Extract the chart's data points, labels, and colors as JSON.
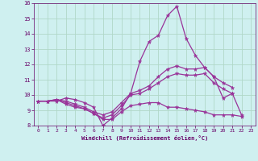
{
  "xlabel": "Windchill (Refroidissement éolien,°C)",
  "xlim": [
    -0.5,
    23.5
  ],
  "ylim": [
    8,
    16
  ],
  "xticks": [
    0,
    1,
    2,
    3,
    4,
    5,
    6,
    7,
    8,
    9,
    10,
    11,
    12,
    13,
    14,
    15,
    16,
    17,
    18,
    19,
    20,
    21,
    22,
    23
  ],
  "yticks": [
    8,
    9,
    10,
    11,
    12,
    13,
    14,
    15,
    16
  ],
  "background_color": "#cff0f0",
  "grid_color": "#b0d8c8",
  "line_color": "#993399",
  "hours": [
    0,
    1,
    2,
    3,
    4,
    5,
    6,
    7,
    8,
    9,
    10,
    11,
    12,
    13,
    14,
    15,
    16,
    17,
    18,
    19,
    20,
    21,
    22,
    23
  ],
  "line1": [
    9.6,
    9.6,
    9.6,
    9.8,
    9.7,
    9.5,
    9.2,
    8.0,
    8.5,
    9.1,
    10.1,
    12.2,
    13.5,
    13.9,
    15.2,
    15.8,
    13.7,
    12.6,
    11.8,
    11.2,
    9.8,
    10.1,
    8.7,
    null
  ],
  "line2": [
    9.6,
    9.6,
    9.7,
    9.6,
    9.4,
    9.2,
    8.9,
    8.7,
    8.9,
    9.5,
    10.1,
    10.3,
    10.6,
    11.2,
    11.7,
    11.9,
    11.7,
    11.7,
    11.8,
    11.2,
    10.8,
    10.5,
    null,
    null
  ],
  "line3": [
    9.6,
    9.6,
    9.7,
    9.5,
    9.3,
    9.1,
    8.8,
    8.5,
    8.7,
    9.3,
    10.0,
    10.1,
    10.4,
    10.8,
    11.2,
    11.4,
    11.3,
    11.3,
    11.4,
    10.8,
    10.4,
    10.1,
    null,
    null
  ],
  "line4": [
    9.6,
    9.6,
    9.7,
    9.4,
    9.2,
    9.1,
    8.8,
    8.4,
    8.4,
    8.9,
    9.3,
    9.4,
    9.5,
    9.5,
    9.2,
    9.2,
    9.1,
    9.0,
    8.9,
    8.7,
    8.7,
    8.7,
    8.6,
    null
  ]
}
